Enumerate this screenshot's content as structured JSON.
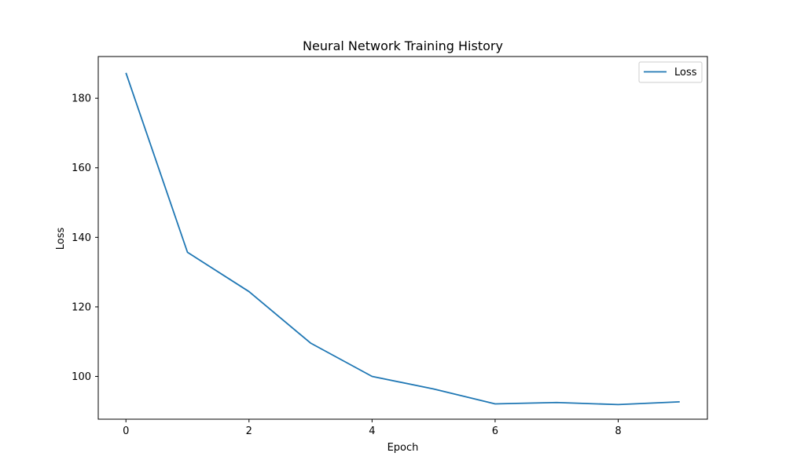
{
  "chart_data": {
    "type": "line",
    "title": "Neural Network Training History",
    "xlabel": "Epoch",
    "ylabel": "Loss",
    "xlim": [
      -0.45,
      9.45
    ],
    "ylim": [
      87.7,
      192.0
    ],
    "x_ticks": [
      0,
      2,
      4,
      6,
      8
    ],
    "y_ticks": [
      100,
      120,
      140,
      160,
      180
    ],
    "grid": false,
    "legend_position": "top-right",
    "series": [
      {
        "name": "Loss",
        "color": "#1f77b4",
        "x": [
          0,
          1,
          2,
          3,
          4,
          5,
          6,
          7,
          8,
          9
        ],
        "y": [
          187.3,
          135.7,
          124.4,
          109.6,
          100.0,
          96.4,
          92.1,
          92.5,
          91.9,
          92.7
        ]
      }
    ]
  }
}
